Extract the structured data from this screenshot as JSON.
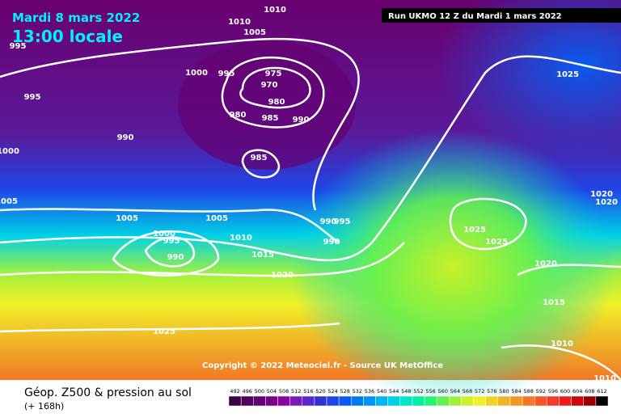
{
  "header": {
    "date": "Mardi 8 mars 2022",
    "time": "13:00 locale",
    "run": "Run UKMO 12 Z du Mardi 1 mars 2022"
  },
  "copyright": "Copyright © 2022 Meteociel.fr - Source UK MetOffice",
  "legend": {
    "title": "Géop. Z500 & pression au sol",
    "lead": "(+ 168h)",
    "labels": [
      492,
      496,
      500,
      504,
      508,
      512,
      516,
      520,
      524,
      528,
      532,
      536,
      540,
      544,
      548,
      552,
      556,
      560,
      564,
      568,
      572,
      576,
      580,
      584,
      588,
      592,
      596,
      600,
      604,
      608,
      612
    ],
    "colors": [
      "#3c0040",
      "#50005a",
      "#640070",
      "#780088",
      "#8c00a0",
      "#7a1ab8",
      "#5a28c8",
      "#3232d2",
      "#1e46e6",
      "#0a5af0",
      "#0078f0",
      "#0096f0",
      "#00b4f0",
      "#00d2e6",
      "#00e6c8",
      "#00f0a0",
      "#28f078",
      "#64f050",
      "#a0f03c",
      "#d2f028",
      "#f0f028",
      "#f0d228",
      "#f0b428",
      "#f09628",
      "#f07828",
      "#f05a28",
      "#f03c28",
      "#e61e1e",
      "#c80a0a",
      "#960000",
      "#000000"
    ]
  },
  "isobars": [
    "1010",
    "1010",
    "1005",
    "995",
    "1000",
    "995",
    "975",
    "970",
    "995",
    "980",
    "980",
    "985",
    "990",
    "990",
    "1000",
    "985",
    "1025",
    "1020",
    "1020",
    "1005",
    "1005",
    "1005",
    "990",
    "995",
    "1025",
    "1000",
    "1010",
    "995",
    "1025",
    "990",
    "990",
    "1015",
    "1020",
    "1020",
    "1015",
    "1025",
    "1010",
    "1010"
  ]
}
